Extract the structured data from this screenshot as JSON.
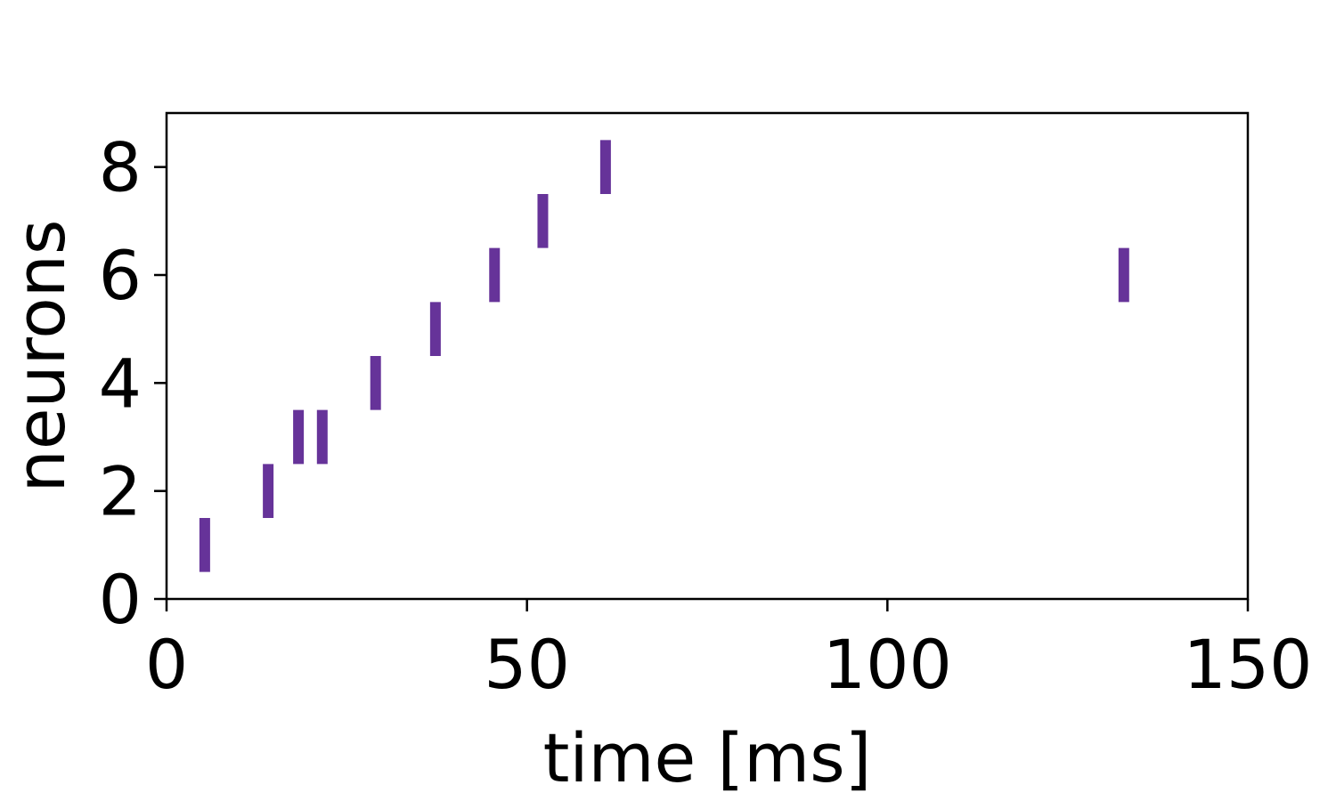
{
  "chart_data": {
    "type": "scatter",
    "title": "",
    "xlabel": "time [ms]",
    "ylabel": "neurons",
    "xlim": [
      0,
      150
    ],
    "ylim": [
      0,
      9
    ],
    "xticks": [
      0,
      50,
      100,
      150
    ],
    "yticks": [
      0,
      2,
      4,
      6,
      8
    ],
    "xtick_labels": [
      "0",
      "50",
      "100",
      "150"
    ],
    "ytick_labels": [
      "0",
      "2",
      "4",
      "6",
      "8"
    ],
    "marker": "vertical-line",
    "grid": false,
    "series": [
      {
        "color": "#663399",
        "points": [
          {
            "x": 5.3,
            "y": 1
          },
          {
            "x": 14.1,
            "y": 2
          },
          {
            "x": 18.3,
            "y": 3
          },
          {
            "x": 21.6,
            "y": 3
          },
          {
            "x": 29.0,
            "y": 4
          },
          {
            "x": 37.3,
            "y": 5
          },
          {
            "x": 45.5,
            "y": 6
          },
          {
            "x": 52.2,
            "y": 7
          },
          {
            "x": 60.9,
            "y": 8
          },
          {
            "x": 132.8,
            "y": 6
          }
        ]
      }
    ]
  }
}
